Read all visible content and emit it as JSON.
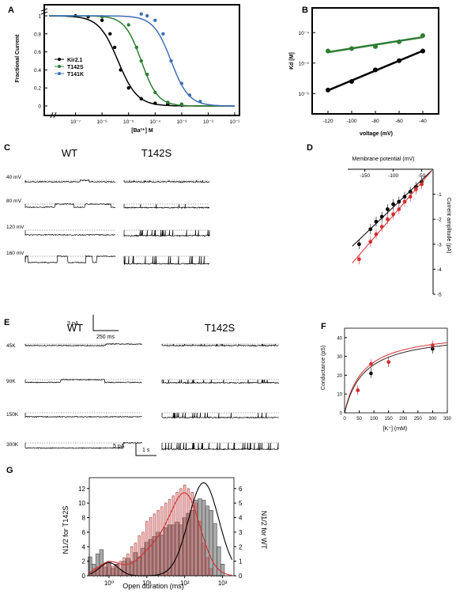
{
  "colors": {
    "wt": "#000000",
    "t142s": "#2e7d32",
    "t141k": "#3f6fb5",
    "red": "#d32f2f",
    "bar_gray": "#a9a9a9",
    "bar_red": "#c07070"
  },
  "panels": {
    "A": {
      "letter": "A",
      "ylabel": "Fractional Current",
      "xlabel": "[Ba²⁺] M",
      "yticks": [
        "0",
        "0.2",
        "0.4",
        "0.6",
        "0.8",
        "1"
      ],
      "xticks": [
        "10⁻⁷",
        "10⁻⁶",
        "10⁻⁵",
        "10⁻⁴",
        "10⁻³",
        "10⁻²",
        "10⁻¹"
      ],
      "legend": [
        "Kir2.1",
        "T142S",
        "T141K"
      ]
    },
    "B": {
      "letter": "B",
      "ylabel": "Kd [M]",
      "xlabel": "voltage (mV)",
      "yticks": [
        "10⁻⁶",
        "10⁻⁵",
        "10⁻⁴"
      ],
      "xticks": [
        "-120",
        "-100",
        "-80",
        "-60",
        "-40"
      ]
    },
    "C": {
      "letter": "C",
      "wt": "WT",
      "mut": "T142S",
      "rows": [
        "40 mV",
        "80 mV",
        "120 mV",
        "160 mV"
      ],
      "scale_y": "3 pA",
      "scale_x": "250 ms"
    },
    "D": {
      "letter": "D",
      "xlabel": "Membrane potential (mV)",
      "ylabel": "Current amplitude (pA)",
      "xticks": [
        "-150",
        "-100",
        "-50"
      ],
      "yticks": [
        "-1",
        "-2",
        "-3",
        "-4",
        "-5"
      ]
    },
    "E": {
      "letter": "E",
      "wt": "WT",
      "mut": "T142S",
      "rows": [
        "45K",
        "90K",
        "150K",
        "300K"
      ],
      "scale_y": "5 pA",
      "scale_x": "1 s"
    },
    "F": {
      "letter": "F",
      "ylabel": "Conductance (pS)",
      "xlabel": "[K⁺] (mM)",
      "yticks": [
        "0",
        "10",
        "20",
        "30",
        "40"
      ],
      "xticks": [
        "0",
        "50",
        "100",
        "150",
        "200",
        "250",
        "300",
        "350"
      ]
    },
    "G": {
      "letter": "G",
      "ylabel_left": "N1/2 for T142S",
      "ylabel_right": "N1/2 for WT",
      "xlabel": "Open duration (ms)",
      "yticks_left": [
        "0",
        "2",
        "4",
        "6",
        "8",
        "10",
        "12"
      ],
      "yticks_right": [
        "0",
        "1",
        "2",
        "3",
        "4",
        "5",
        "6"
      ],
      "xticks": [
        "10⁰",
        "10¹",
        "10²",
        "10³"
      ]
    }
  },
  "chart_data": [
    {
      "panel": "A",
      "type": "scatter",
      "xscale": "log",
      "xlim": [
        1e-08,
        0.1
      ],
      "ylim": [
        0,
        1
      ],
      "series": [
        {
          "name": "Kir2.1",
          "color": "#000000",
          "ic50": 4e-06,
          "hill": 1.2,
          "points": [
            [
              1e-07,
              1
            ],
            [
              3e-07,
              0.99
            ],
            [
              1e-06,
              0.95
            ],
            [
              2e-06,
              0.8
            ],
            [
              3e-06,
              0.65
            ],
            [
              5e-06,
              0.4
            ],
            [
              1e-05,
              0.2
            ],
            [
              3e-05,
              0.08
            ],
            [
              0.0001,
              0.03
            ],
            [
              0.0003,
              0.02
            ],
            [
              0.001,
              0.01
            ]
          ]
        },
        {
          "name": "T142S",
          "color": "#2e7d32",
          "ic50": 3e-05,
          "hill": 1.4,
          "points": [
            [
              1e-06,
              0.99
            ],
            [
              1e-05,
              0.9
            ],
            [
              2e-05,
              0.65
            ],
            [
              3e-05,
              0.5
            ],
            [
              5e-05,
              0.35
            ],
            [
              0.0001,
              0.15
            ],
            [
              0.0003,
              0.04
            ],
            [
              0.001,
              0.02
            ]
          ]
        },
        {
          "name": "T141K",
          "color": "#3f6fb5",
          "ic50": 0.0004,
          "hill": 1.3,
          "points": [
            [
              3e-05,
              1.02
            ],
            [
              5e-05,
              1.0
            ],
            [
              0.0001,
              0.95
            ],
            [
              0.0002,
              0.8
            ],
            [
              0.0004,
              0.5
            ],
            [
              0.001,
              0.25
            ],
            [
              0.002,
              0.12
            ],
            [
              0.005,
              0.05
            ]
          ]
        }
      ]
    },
    {
      "panel": "B",
      "type": "scatter",
      "yscale": "log",
      "xlim": [
        -130,
        -35
      ],
      "ylim": [
        5e-07,
        0.0002
      ],
      "series": [
        {
          "color": "#2e7d32",
          "x": [
            -120,
            -100,
            -80,
            -60,
            -40
          ],
          "y": [
            2.5e-05,
            3e-05,
            3.5e-05,
            5e-05,
            8e-05
          ]
        },
        {
          "color": "#000000",
          "x": [
            -120,
            -100,
            -80,
            -60,
            -40
          ],
          "y": [
            1.3e-06,
            2.5e-06,
            6e-06,
            1.2e-05,
            2.5e-05
          ]
        }
      ]
    },
    {
      "panel": "D",
      "type": "scatter",
      "xlim": [
        -180,
        -30
      ],
      "ylim": [
        -5,
        0
      ],
      "series": [
        {
          "color": "#000000",
          "x": [
            -160,
            -140,
            -130,
            -120,
            -110,
            -100,
            -90,
            -80,
            -70,
            -60,
            -50
          ],
          "y": [
            -3.0,
            -2.4,
            -2.1,
            -1.9,
            -1.6,
            -1.4,
            -1.3,
            -1.1,
            -0.9,
            -0.7,
            -0.5
          ]
        },
        {
          "color": "#d32f2f",
          "x": [
            -160,
            -140,
            -130,
            -120,
            -110,
            -100,
            -90,
            -80,
            -70,
            -60,
            -50
          ],
          "y": [
            -3.6,
            -2.9,
            -2.6,
            -2.3,
            -2.0,
            -1.8,
            -1.6,
            -1.3,
            -1.1,
            -0.8,
            -0.6
          ]
        }
      ]
    },
    {
      "panel": "F",
      "type": "scatter",
      "xlim": [
        0,
        350
      ],
      "ylim": [
        0,
        45
      ],
      "series": [
        {
          "color": "#000000",
          "x": [
            45,
            90,
            150,
            300
          ],
          "y": [
            12,
            21,
            27,
            34
          ]
        },
        {
          "color": "#d32f2f",
          "x": [
            45,
            90,
            150,
            300
          ],
          "y": [
            12,
            26,
            27,
            36
          ]
        }
      ]
    },
    {
      "panel": "G",
      "type": "bar",
      "xscale": "log",
      "xlim": [
        0.3,
        2000
      ],
      "log_bins": [
        -0.5,
        -0.4,
        -0.3,
        -0.2,
        -0.1,
        0,
        0.1,
        0.2,
        0.3,
        0.4,
        0.5,
        0.6,
        0.7,
        0.8,
        0.9,
        1,
        1.1,
        1.2,
        1.3,
        1.4,
        1.5,
        1.6,
        1.7,
        1.8,
        1.9,
        2,
        2.1,
        2.2,
        2.3,
        2.4,
        2.5,
        2.6,
        2.7,
        2.8,
        2.9,
        3
      ],
      "wt_values": [
        1.3,
        0.8,
        1.5,
        1.8,
        0.6,
        1.0,
        0.5,
        0.8,
        0.4,
        1.0,
        1.2,
        1.0,
        1.6,
        1.3,
        1.9,
        2.3,
        2.5,
        2.7,
        3.0,
        2.8,
        3.3,
        3.5,
        3.5,
        3.7,
        3.5,
        4.0,
        4.3,
        4.5,
        5.2,
        5.3,
        5.2,
        4.8,
        4.5,
        3.6,
        2.0,
        0.8
      ],
      "t142s_values": [
        0.5,
        1.0,
        1.2,
        1.5,
        1.8,
        1.6,
        1.3,
        1.5,
        2.0,
        2.5,
        3.0,
        4.0,
        4.5,
        5.5,
        6.0,
        7.5,
        8.0,
        8.5,
        9.0,
        9.5,
        10.0,
        10.5,
        11.0,
        11.5,
        12.0,
        12.5,
        12.0,
        11.5,
        10.0,
        7.5,
        4.5,
        2.5,
        1.0,
        0,
        0,
        0
      ]
    }
  ]
}
